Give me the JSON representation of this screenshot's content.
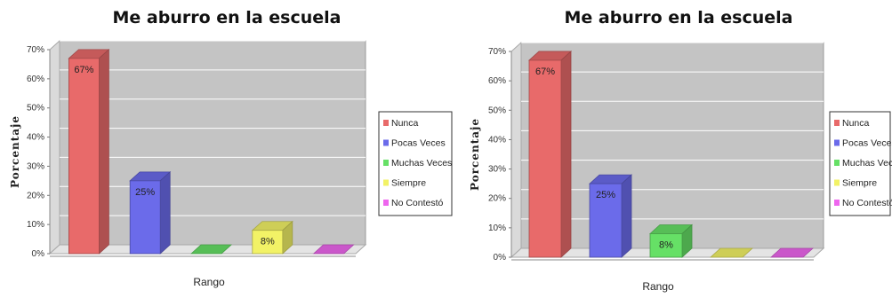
{
  "chart_data": [
    {
      "type": "bar",
      "title": "Me aburro en la escuela",
      "xlabel": "Rango",
      "ylabel": "Porcentaje",
      "categories": [
        "Nunca",
        "Pocas Veces",
        "Muchas Veces",
        "Siempre",
        "No Contestó"
      ],
      "values": [
        67,
        25,
        0,
        8,
        0
      ],
      "value_labels": [
        "67%",
        "25%",
        "",
        "8%",
        ""
      ],
      "y_ticks": [
        "0%",
        "10%",
        "20%",
        "30%",
        "40%",
        "50%",
        "60%",
        "70%"
      ],
      "ylim": [
        0,
        70
      ],
      "legend": [
        "Nunca",
        "Pocas Veces",
        "Muchas Veces",
        "Siempre",
        "No Contestó"
      ],
      "legend_position": "right",
      "grid": true,
      "colors": [
        "#e86a6a",
        "#6b6bea",
        "#66e066",
        "#f2f266",
        "#ee66ee"
      ]
    },
    {
      "type": "bar",
      "title": "Me aburro en la escuela",
      "xlabel": "Rango",
      "ylabel": "Porcentaje",
      "categories": [
        "Nunca",
        "Pocas Veces",
        "Muchas Veces",
        "Siempre",
        "No Contestó"
      ],
      "values": [
        67,
        25,
        8,
        0,
        0
      ],
      "value_labels": [
        "67%",
        "25%",
        "8%",
        "",
        ""
      ],
      "y_ticks": [
        "0%",
        "10%",
        "20%",
        "30%",
        "40%",
        "50%",
        "60%",
        "70%"
      ],
      "ylim": [
        0,
        70
      ],
      "legend": [
        "Nunca",
        "Pocas Veces",
        "Muchas Veces",
        "Siempre",
        "No Contestó"
      ],
      "legend_position": "right",
      "grid": true,
      "colors": [
        "#e86a6a",
        "#6b6bea",
        "#66e066",
        "#f2f266",
        "#ee66ee"
      ]
    }
  ]
}
